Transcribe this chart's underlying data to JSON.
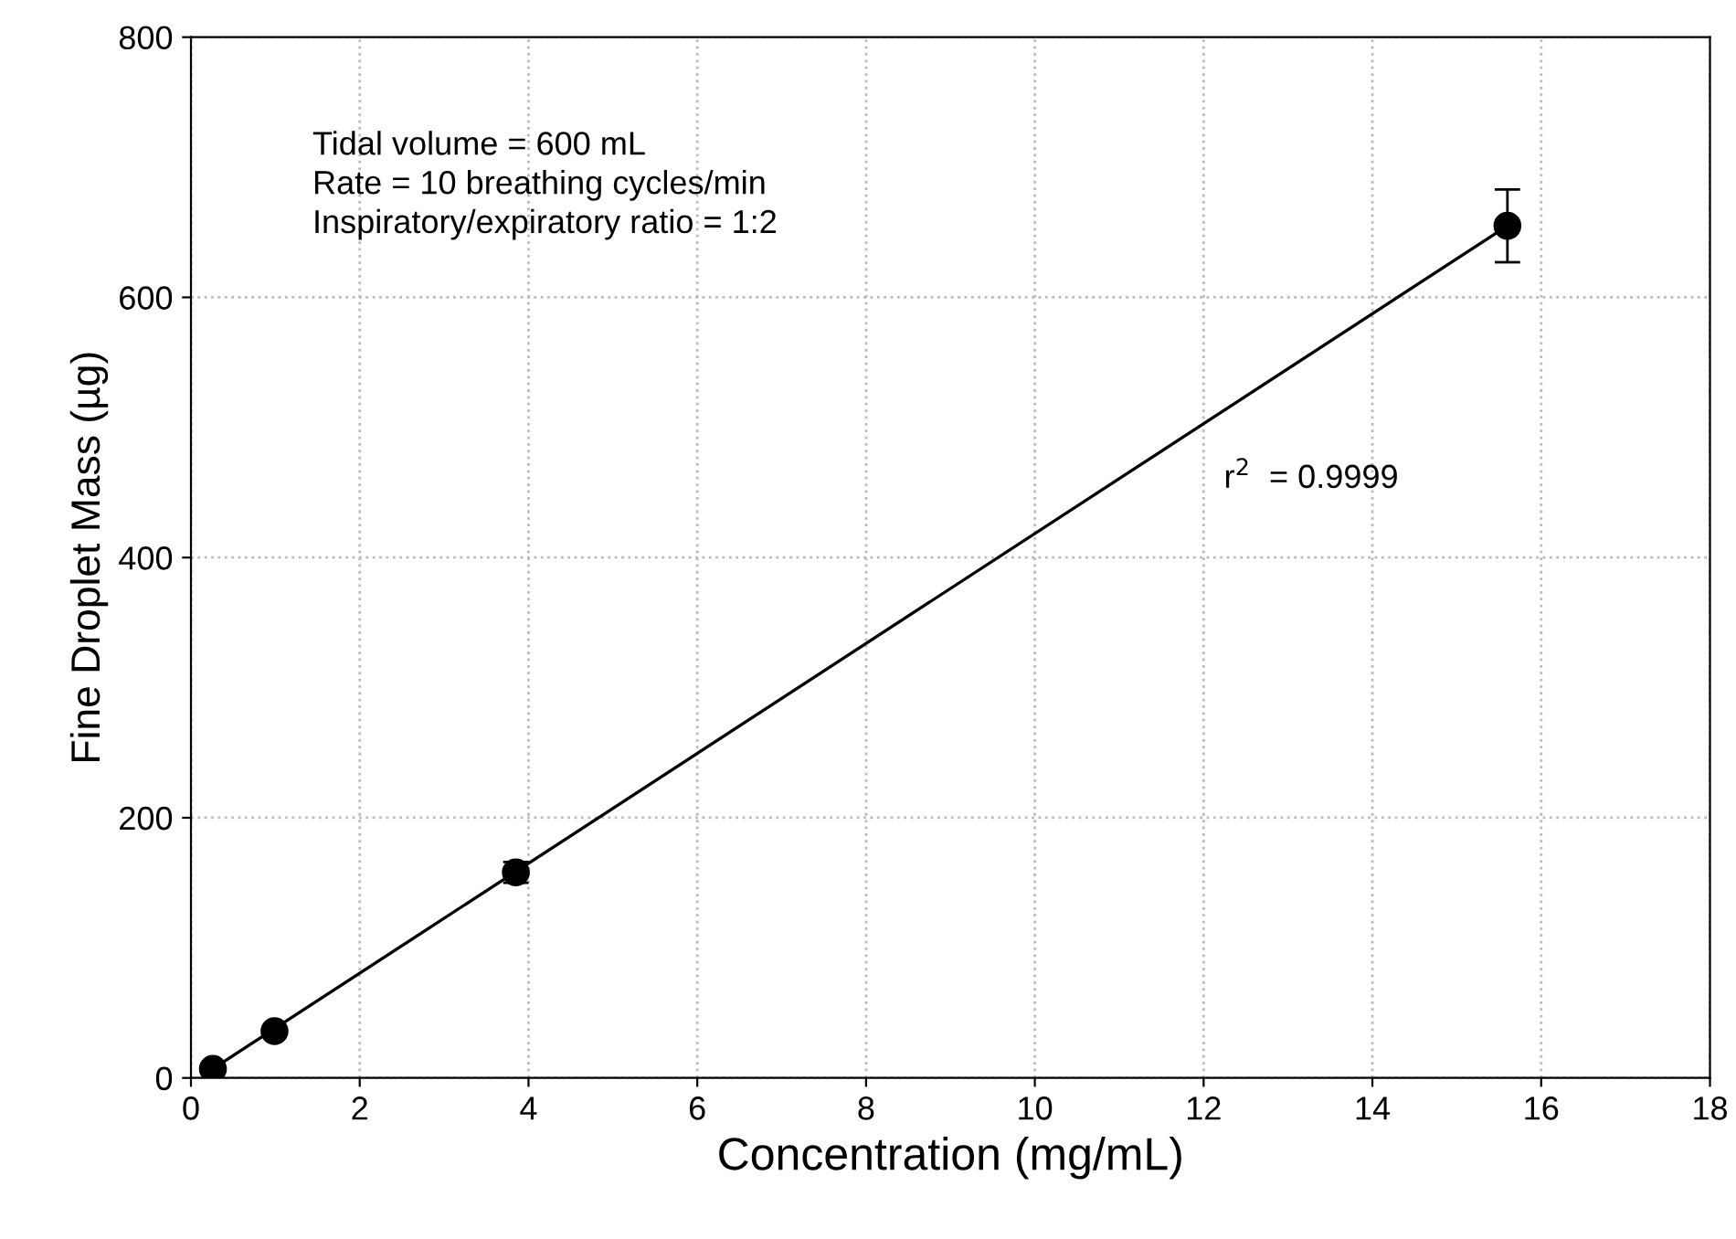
{
  "chart_data": {
    "type": "scatter",
    "xlabel": "Concentration (mg/mL)",
    "ylabel": "Fine Droplet Mass (µg)",
    "xlim": [
      0,
      18
    ],
    "xticks": [
      0,
      2,
      4,
      6,
      8,
      10,
      12,
      14,
      16,
      18
    ],
    "ylim": [
      0,
      800
    ],
    "yticks": [
      0,
      200,
      400,
      600,
      800
    ],
    "grid": true,
    "marker": "circle",
    "series": [
      {
        "color": "#000000",
        "x": [
          0.26,
          0.99,
          3.85,
          15.6
        ],
        "values": [
          7,
          36,
          158,
          655
        ],
        "errors": [
          null,
          null,
          8,
          28
        ]
      },
      {
        "type": "line",
        "color": "#000000",
        "x": [
          0.26,
          15.6
        ],
        "values": [
          7,
          655
        ],
        "marker": "none"
      }
    ],
    "annotations": [
      "Tidal volume = 600 mL",
      "Rate = 10 breathing cycles/min",
      "Inspiratory/expiratory ratio = 1:2",
      "r$^{2}$  = 0.9999"
    ]
  }
}
